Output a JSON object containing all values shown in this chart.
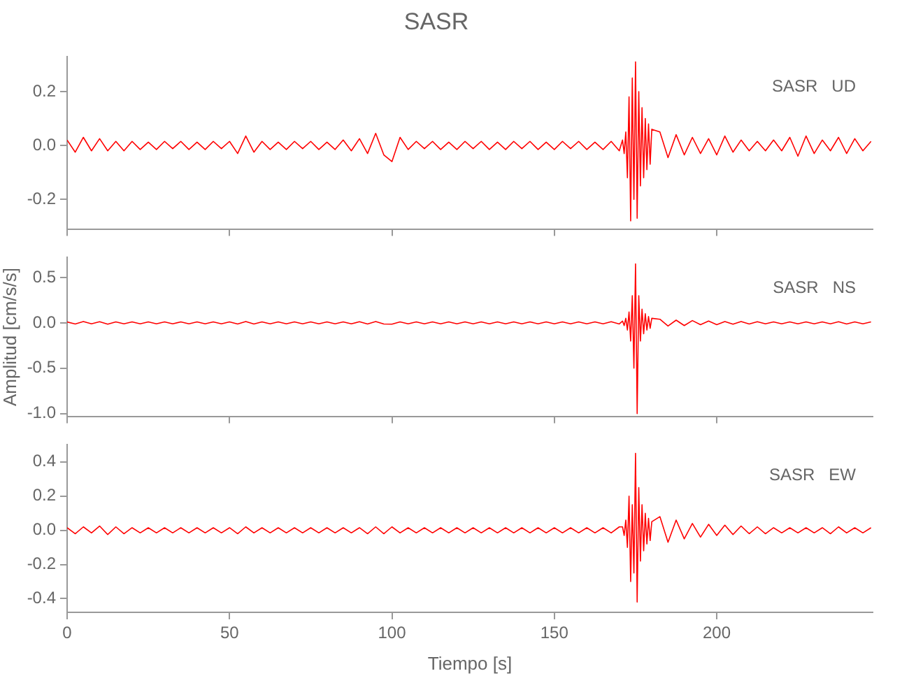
{
  "chart_data": [
    {
      "type": "line",
      "title": "SASR",
      "annotations": [
        "SASR   UD"
      ],
      "tick_labels": "y",
      "xlim": [
        0,
        248
      ],
      "xticks": [
        0,
        50,
        100,
        150,
        200
      ],
      "ylim": [
        -0.31,
        0.33
      ],
      "yticks": [
        {
          "value": -0.2,
          "label": "-0.2"
        },
        {
          "value": 0,
          "label": "0.0"
        },
        {
          "value": 0.2,
          "label": "0.2"
        }
      ],
      "x": [
        0,
        2.5,
        5,
        7.5,
        10,
        12.5,
        15,
        17.5,
        20,
        22.5,
        25,
        27.5,
        30,
        32.5,
        35,
        37.5,
        40,
        42.5,
        45,
        47.5,
        50,
        52.5,
        55,
        57.5,
        60,
        62.5,
        65,
        67.5,
        70,
        72.5,
        75,
        77.5,
        80,
        82.5,
        85,
        87.5,
        90,
        92.5,
        95,
        97.5,
        100,
        102.5,
        105,
        107.5,
        110,
        112.5,
        115,
        117.5,
        120,
        122.5,
        125,
        127.5,
        130,
        132.5,
        135,
        137.5,
        140,
        142.5,
        145,
        147.5,
        150,
        152.5,
        155,
        157.5,
        160,
        162.5,
        165,
        167.5,
        170,
        171,
        171.5,
        172,
        172.5,
        173,
        173.5,
        174,
        174.5,
        175,
        175.5,
        176,
        176.5,
        177,
        177.5,
        178,
        178.5,
        179,
        179.5,
        180,
        182.5,
        185,
        187.5,
        190,
        192.5,
        195,
        197.5,
        200,
        202.5,
        205,
        207.5,
        210,
        212.5,
        215,
        217.5,
        220,
        222.5,
        225,
        227.5,
        230,
        232.5,
        235,
        237.5,
        240,
        242.5,
        245,
        247.5
      ],
      "series": [
        {
          "color": "#ff0000",
          "values": [
            0.02,
            -0.025,
            0.03,
            -0.02,
            0.025,
            -0.02,
            0.015,
            -0.02,
            0.015,
            -0.015,
            0.012,
            -0.015,
            0.015,
            -0.012,
            0.015,
            -0.015,
            0.012,
            -0.015,
            0.015,
            -0.012,
            0.015,
            -0.03,
            0.035,
            -0.025,
            0.015,
            -0.015,
            0.012,
            -0.015,
            0.015,
            -0.012,
            0.015,
            -0.015,
            0.012,
            -0.015,
            0.02,
            -0.02,
            0.025,
            -0.03,
            0.045,
            -0.035,
            -0.06,
            0.03,
            -0.015,
            0.015,
            -0.012,
            0.015,
            -0.015,
            0.012,
            -0.015,
            0.015,
            -0.012,
            0.015,
            -0.015,
            0.012,
            -0.015,
            0.015,
            -0.012,
            0.015,
            -0.015,
            0.012,
            -0.015,
            0.015,
            -0.012,
            0.015,
            -0.015,
            0.012,
            -0.015,
            0.015,
            -0.02,
            0.02,
            -0.03,
            0.05,
            -0.12,
            0.18,
            -0.28,
            0.25,
            -0.2,
            0.31,
            -0.27,
            0.2,
            -0.15,
            0.14,
            -0.12,
            0.1,
            -0.09,
            0.08,
            -0.07,
            0.06,
            0.05,
            -0.045,
            0.04,
            -0.035,
            0.03,
            -0.03,
            0.025,
            -0.035,
            0.035,
            -0.025,
            0.02,
            -0.02,
            0.015,
            -0.02,
            0.02,
            -0.02,
            0.03,
            -0.04,
            0.035,
            -0.03,
            0.02,
            -0.02,
            0.03,
            -0.03,
            0.025,
            -0.02,
            0.015
          ]
        }
      ]
    },
    {
      "type": "line",
      "ylabel": "Amplitud [cm/s/s]",
      "annotations": [
        "SASR   NS"
      ],
      "tick_labels": "y",
      "xlim": [
        0,
        248
      ],
      "xticks": [
        0,
        50,
        100,
        150,
        200
      ],
      "ylim": [
        -1.03,
        0.72
      ],
      "yticks": [
        {
          "value": -1,
          "label": "-1.0"
        },
        {
          "value": -0.5,
          "label": "-0.5"
        },
        {
          "value": 0,
          "label": "0.0"
        },
        {
          "value": 0.5,
          "label": "0.5"
        }
      ],
      "x": [
        0,
        2.5,
        5,
        7.5,
        10,
        12.5,
        15,
        17.5,
        20,
        22.5,
        25,
        27.5,
        30,
        32.5,
        35,
        37.5,
        40,
        42.5,
        45,
        47.5,
        50,
        52.5,
        55,
        57.5,
        60,
        62.5,
        65,
        67.5,
        70,
        72.5,
        75,
        77.5,
        80,
        82.5,
        85,
        87.5,
        90,
        92.5,
        95,
        97.5,
        100,
        102.5,
        105,
        107.5,
        110,
        112.5,
        115,
        117.5,
        120,
        122.5,
        125,
        127.5,
        130,
        132.5,
        135,
        137.5,
        140,
        142.5,
        145,
        147.5,
        150,
        152.5,
        155,
        157.5,
        160,
        162.5,
        165,
        167.5,
        170,
        171,
        171.5,
        172,
        172.5,
        173,
        173.5,
        174,
        174.5,
        175,
        175.5,
        176,
        176.5,
        177,
        177.5,
        178,
        178.5,
        179,
        179.5,
        180,
        182.5,
        185,
        187.5,
        190,
        192.5,
        195,
        197.5,
        200,
        202.5,
        205,
        207.5,
        210,
        212.5,
        215,
        217.5,
        220,
        222.5,
        225,
        227.5,
        230,
        232.5,
        235,
        237.5,
        240,
        242.5,
        245,
        247.5
      ],
      "series": [
        {
          "color": "#ff0000",
          "values": [
            0.01,
            -0.012,
            0.015,
            -0.01,
            0.012,
            -0.015,
            0.01,
            -0.01,
            0.01,
            -0.01,
            0.01,
            -0.01,
            0.01,
            -0.01,
            0.01,
            -0.01,
            0.01,
            -0.01,
            0.01,
            -0.01,
            0.01,
            -0.012,
            0.015,
            -0.012,
            0.01,
            -0.01,
            0.01,
            -0.01,
            0.01,
            -0.01,
            0.01,
            -0.01,
            0.01,
            -0.01,
            0.01,
            -0.01,
            0.012,
            -0.012,
            0.015,
            -0.012,
            -0.015,
            0.01,
            -0.01,
            0.01,
            -0.01,
            0.01,
            -0.01,
            0.01,
            -0.01,
            0.01,
            -0.01,
            0.01,
            -0.01,
            0.01,
            -0.01,
            0.01,
            -0.01,
            0.01,
            -0.01,
            0.01,
            -0.01,
            0.01,
            -0.01,
            0.01,
            -0.01,
            0.01,
            -0.01,
            0.012,
            -0.012,
            0.02,
            -0.03,
            0.05,
            -0.08,
            0.12,
            -0.2,
            0.3,
            -0.5,
            0.65,
            -1.0,
            0.3,
            -0.2,
            0.15,
            -0.12,
            0.1,
            -0.08,
            0.07,
            -0.06,
            0.05,
            0.04,
            -0.035,
            0.03,
            -0.03,
            0.025,
            -0.02,
            0.02,
            -0.02,
            0.015,
            -0.015,
            0.015,
            -0.012,
            0.012,
            -0.01,
            0.01,
            -0.01,
            0.01,
            -0.01,
            0.01,
            -0.01,
            0.01,
            -0.01,
            0.012,
            -0.012,
            0.01,
            -0.01,
            0.01
          ]
        }
      ]
    },
    {
      "type": "line",
      "xlabel": "Tiempo [s]",
      "annotations": [
        "SASR   EW"
      ],
      "xlim": [
        0,
        248
      ],
      "xticks": [
        0,
        50,
        100,
        150,
        200
      ],
      "ylim": [
        -0.48,
        0.5
      ],
      "yticks": [
        {
          "value": -0.4,
          "label": "-0.4"
        },
        {
          "value": -0.2,
          "label": "-0.2"
        },
        {
          "value": 0,
          "label": "0.0"
        },
        {
          "value": 0.2,
          "label": "0.2"
        },
        {
          "value": 0.4,
          "label": "0.4"
        }
      ],
      "x": [
        0,
        2.5,
        5,
        7.5,
        10,
        12.5,
        15,
        17.5,
        20,
        22.5,
        25,
        27.5,
        30,
        32.5,
        35,
        37.5,
        40,
        42.5,
        45,
        47.5,
        50,
        52.5,
        55,
        57.5,
        60,
        62.5,
        65,
        67.5,
        70,
        72.5,
        75,
        77.5,
        80,
        82.5,
        85,
        87.5,
        90,
        92.5,
        95,
        97.5,
        100,
        102.5,
        105,
        107.5,
        110,
        112.5,
        115,
        117.5,
        120,
        122.5,
        125,
        127.5,
        130,
        132.5,
        135,
        137.5,
        140,
        142.5,
        145,
        147.5,
        150,
        152.5,
        155,
        157.5,
        160,
        162.5,
        165,
        167.5,
        170,
        171,
        171.5,
        172,
        172.5,
        173,
        173.5,
        174,
        174.5,
        175,
        175.5,
        176,
        176.5,
        177,
        177.5,
        178,
        178.5,
        179,
        179.5,
        180,
        182.5,
        185,
        187.5,
        190,
        192.5,
        195,
        197.5,
        200,
        202.5,
        205,
        207.5,
        210,
        212.5,
        215,
        217.5,
        220,
        222.5,
        225,
        227.5,
        230,
        232.5,
        235,
        237.5,
        240,
        242.5,
        245,
        247.5
      ],
      "series": [
        {
          "color": "#ff0000",
          "values": [
            0.015,
            -0.02,
            0.02,
            -0.015,
            0.025,
            -0.025,
            0.02,
            -0.02,
            0.015,
            -0.015,
            0.015,
            -0.015,
            0.015,
            -0.015,
            0.015,
            -0.015,
            0.015,
            -0.015,
            0.015,
            -0.015,
            0.015,
            -0.02,
            0.02,
            -0.015,
            0.015,
            -0.015,
            0.015,
            -0.015,
            0.015,
            -0.015,
            0.015,
            -0.015,
            0.015,
            -0.015,
            0.015,
            -0.015,
            0.015,
            -0.02,
            0.02,
            -0.02,
            0.02,
            -0.015,
            0.015,
            -0.015,
            0.015,
            -0.015,
            0.015,
            -0.015,
            0.015,
            -0.015,
            0.015,
            -0.015,
            0.015,
            -0.015,
            0.015,
            -0.015,
            0.015,
            -0.015,
            0.015,
            -0.015,
            0.015,
            -0.015,
            0.015,
            -0.015,
            0.015,
            -0.015,
            0.015,
            -0.015,
            0.02,
            0.02,
            -0.03,
            0.06,
            -0.1,
            0.2,
            -0.3,
            0.15,
            -0.25,
            0.45,
            -0.42,
            0.25,
            -0.18,
            0.15,
            -0.12,
            0.1,
            -0.08,
            0.07,
            -0.06,
            0.05,
            0.08,
            -0.07,
            0.06,
            -0.05,
            0.04,
            -0.04,
            0.035,
            -0.03,
            0.03,
            -0.025,
            0.025,
            -0.02,
            0.02,
            -0.02,
            0.015,
            -0.015,
            0.015,
            -0.015,
            0.015,
            -0.015,
            0.015,
            -0.02,
            0.02,
            -0.015,
            0.015,
            -0.015,
            0.015
          ]
        }
      ]
    }
  ]
}
